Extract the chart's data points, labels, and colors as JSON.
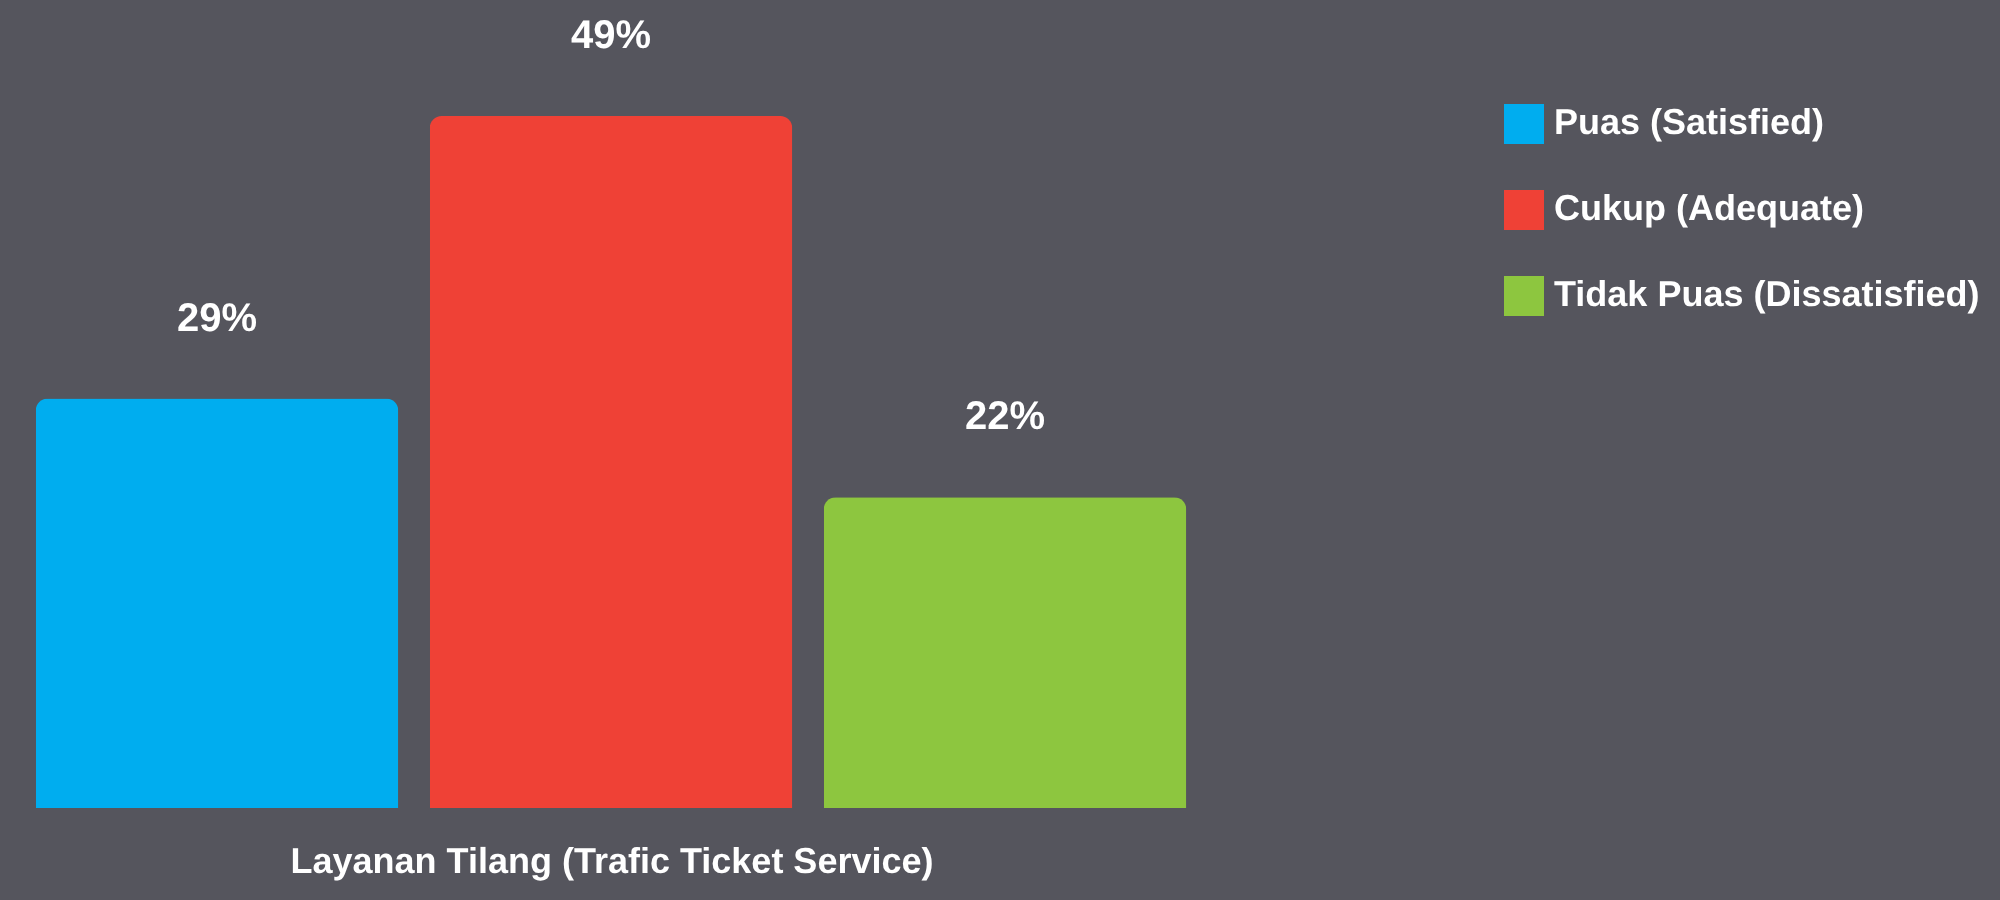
{
  "chart_data": {
    "type": "bar",
    "xlabel": "Layanan Tilang  (Trafic Ticket Service)",
    "categories": [
      null,
      null,
      null
    ],
    "stacked": true,
    "series": [
      {
        "name": "Puas (Satisfied)",
        "color": "#00adef",
        "values": [
          29,
          null,
          null
        ],
        "value_labels": [
          "29%",
          null,
          null
        ]
      },
      {
        "name": "Cukup (Adequate)",
        "color": "#ef4136",
        "values": [
          null,
          49,
          null
        ],
        "value_labels": [
          null,
          "49%",
          null
        ]
      },
      {
        "name": "Tidak Puas (Dissatisfied)",
        "color": "#8dc63f",
        "values": [
          null,
          null,
          22
        ],
        "value_labels": [
          null,
          null,
          "22%"
        ]
      }
    ],
    "tick_labels": false,
    "grid": false,
    "legend": "right"
  }
}
